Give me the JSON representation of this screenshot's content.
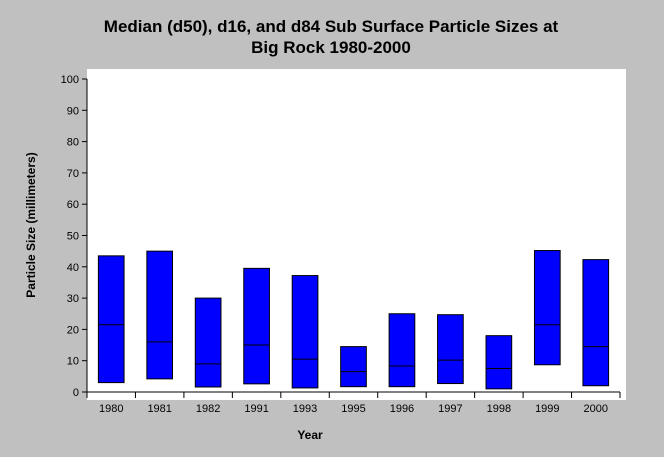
{
  "chart_data": {
    "type": "bar",
    "subtype": "floating-range",
    "title": [
      "Median (d50), d16, and d84 Sub Surface Particle Sizes at",
      "Big Rock 1980-2000"
    ],
    "xlabel": "Year",
    "ylabel": "Particle Size (millimeters)",
    "ylim": [
      0,
      100
    ],
    "yticks": [
      0,
      10,
      20,
      30,
      40,
      50,
      60,
      70,
      80,
      90,
      100
    ],
    "grid": false,
    "categories": [
      "1980",
      "1981",
      "1982",
      "1991",
      "1993",
      "1995",
      "1996",
      "1997",
      "1998",
      "1999",
      "2000"
    ],
    "series": [
      {
        "name": "d16",
        "values": [
          3.0,
          4.2,
          1.6,
          2.6,
          1.3,
          1.7,
          1.7,
          2.7,
          1.0,
          8.7,
          2.0
        ]
      },
      {
        "name": "d50",
        "values": [
          21.5,
          16.0,
          9.0,
          15.0,
          10.5,
          6.5,
          8.3,
          10.2,
          7.5,
          21.5,
          14.5
        ]
      },
      {
        "name": "d84",
        "values": [
          43.5,
          45.0,
          30.0,
          39.5,
          37.2,
          14.5,
          25.0,
          24.7,
          18.0,
          45.2,
          42.3
        ]
      }
    ],
    "colors": {
      "bar_fill": "#0000ff",
      "bar_stroke": "#000000",
      "background": "#c0c0c0",
      "plot_background": "#ffffff"
    }
  }
}
